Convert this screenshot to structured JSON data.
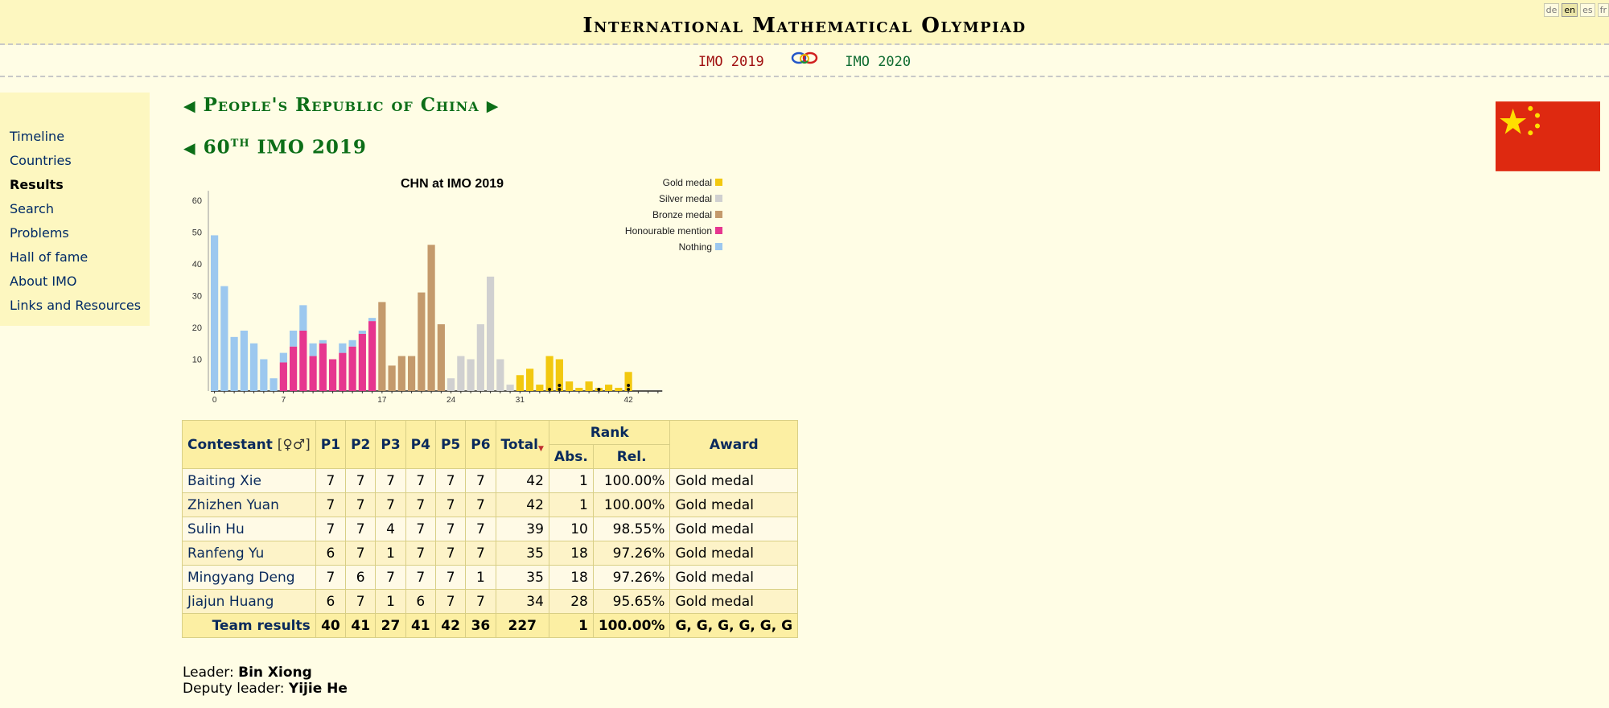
{
  "header": {
    "title": "International Mathematical Olympiad",
    "languages": [
      {
        "code": "de",
        "active": false
      },
      {
        "code": "en",
        "active": true
      },
      {
        "code": "es",
        "active": false
      },
      {
        "code": "fr",
        "active": false
      }
    ]
  },
  "nav": {
    "prev": "IMO 2019",
    "next": "IMO 2020"
  },
  "sidebar": {
    "items": [
      {
        "label": "Timeline",
        "current": false
      },
      {
        "label": "Countries",
        "current": false
      },
      {
        "label": "Results",
        "current": true
      },
      {
        "label": "Search",
        "current": false
      },
      {
        "label": "Problems",
        "current": false
      },
      {
        "label": "Hall of fame",
        "current": false
      },
      {
        "label": "About IMO",
        "current": false
      },
      {
        "label": "Links and Resources",
        "current": false
      }
    ]
  },
  "country": {
    "name": "People's Republic of China",
    "imo_ordinal": "60",
    "imo_ordinal_suffix": "TH",
    "imo_label": "IMO 2019",
    "flag": "china-flag"
  },
  "chart_data": {
    "type": "bar",
    "title": "CHN at IMO 2019",
    "xlabel": "",
    "ylabel": "",
    "xlim": [
      0,
      45
    ],
    "ylim": [
      0,
      65
    ],
    "yticks": [
      10,
      20,
      30,
      40,
      50,
      60
    ],
    "xticks": [
      0,
      7,
      17,
      24,
      31,
      42
    ],
    "legend_position": "top-right",
    "legend": [
      {
        "name": "Gold medal",
        "color": "#f2c80f"
      },
      {
        "name": "Silver medal",
        "color": "#d0d0d0"
      },
      {
        "name": "Bronze medal",
        "color": "#c49a6c"
      },
      {
        "name": "Honourable mention",
        "color": "#e6368f"
      },
      {
        "name": "Nothing",
        "color": "#9cc8ef"
      }
    ],
    "bars": [
      {
        "score": 0,
        "values": {
          "nothing": 49
        }
      },
      {
        "score": 1,
        "values": {
          "nothing": 33
        }
      },
      {
        "score": 2,
        "values": {
          "nothing": 17
        }
      },
      {
        "score": 3,
        "values": {
          "nothing": 19
        }
      },
      {
        "score": 4,
        "values": {
          "nothing": 15
        }
      },
      {
        "score": 5,
        "values": {
          "nothing": 10
        }
      },
      {
        "score": 6,
        "values": {
          "nothing": 4
        }
      },
      {
        "score": 7,
        "values": {
          "hm": 9,
          "nothing": 3
        }
      },
      {
        "score": 8,
        "values": {
          "hm": 14,
          "nothing": 5
        }
      },
      {
        "score": 9,
        "values": {
          "hm": 19,
          "nothing": 8
        }
      },
      {
        "score": 10,
        "values": {
          "hm": 11,
          "nothing": 4
        }
      },
      {
        "score": 11,
        "values": {
          "hm": 15,
          "nothing": 1
        }
      },
      {
        "score": 12,
        "values": {
          "hm": 10
        }
      },
      {
        "score": 13,
        "values": {
          "hm": 12,
          "nothing": 3
        }
      },
      {
        "score": 14,
        "values": {
          "hm": 14,
          "nothing": 2
        }
      },
      {
        "score": 15,
        "values": {
          "hm": 18,
          "nothing": 1
        }
      },
      {
        "score": 16,
        "values": {
          "hm": 22,
          "nothing": 1
        }
      },
      {
        "score": 17,
        "values": {
          "bronze": 28
        }
      },
      {
        "score": 18,
        "values": {
          "bronze": 8
        }
      },
      {
        "score": 19,
        "values": {
          "bronze": 11
        }
      },
      {
        "score": 20,
        "values": {
          "bronze": 11
        }
      },
      {
        "score": 21,
        "values": {
          "bronze": 31
        }
      },
      {
        "score": 22,
        "values": {
          "bronze": 46
        }
      },
      {
        "score": 23,
        "values": {
          "bronze": 21
        }
      },
      {
        "score": 24,
        "values": {
          "silver": 4
        }
      },
      {
        "score": 25,
        "values": {
          "silver": 11
        }
      },
      {
        "score": 26,
        "values": {
          "silver": 10
        }
      },
      {
        "score": 27,
        "values": {
          "silver": 21
        }
      },
      {
        "score": 28,
        "values": {
          "silver": 36
        }
      },
      {
        "score": 29,
        "values": {
          "silver": 10
        }
      },
      {
        "score": 30,
        "values": {
          "silver": 2
        }
      },
      {
        "score": 31,
        "values": {
          "gold": 5
        }
      },
      {
        "score": 32,
        "values": {
          "gold": 7
        }
      },
      {
        "score": 33,
        "values": {
          "gold": 2
        }
      },
      {
        "score": 34,
        "values": {
          "gold": 11
        },
        "team": 1
      },
      {
        "score": 35,
        "values": {
          "gold": 10
        },
        "team": 2
      },
      {
        "score": 36,
        "values": {
          "gold": 3
        }
      },
      {
        "score": 37,
        "values": {
          "gold": 1
        }
      },
      {
        "score": 38,
        "values": {
          "gold": 3
        }
      },
      {
        "score": 39,
        "values": {
          "gold": 1
        },
        "team": 1
      },
      {
        "score": 40,
        "values": {
          "gold": 2
        }
      },
      {
        "score": 41,
        "values": {
          "gold": 1
        }
      },
      {
        "score": 42,
        "values": {
          "gold": 6
        },
        "team": 2
      }
    ]
  },
  "table": {
    "headers": {
      "contestant": "Contestant",
      "gender_icon": "[♀♂]",
      "problems": [
        "P1",
        "P2",
        "P3",
        "P4",
        "P5",
        "P6"
      ],
      "total": "Total",
      "rank": "Rank",
      "abs": "Abs.",
      "rel": "Rel.",
      "award": "Award"
    },
    "rows": [
      {
        "name": "Baiting Xie",
        "scores": [
          "7",
          "7",
          "7",
          "7",
          "7",
          "7"
        ],
        "total": "42",
        "abs": "1",
        "rel": "100.00%",
        "award": "Gold medal"
      },
      {
        "name": "Zhizhen Yuan",
        "scores": [
          "7",
          "7",
          "7",
          "7",
          "7",
          "7"
        ],
        "total": "42",
        "abs": "1",
        "rel": "100.00%",
        "award": "Gold medal"
      },
      {
        "name": "Sulin Hu",
        "scores": [
          "7",
          "7",
          "4",
          "7",
          "7",
          "7"
        ],
        "total": "39",
        "abs": "10",
        "rel": "98.55%",
        "award": "Gold medal"
      },
      {
        "name": "Ranfeng Yu",
        "scores": [
          "6",
          "7",
          "1",
          "7",
          "7",
          "7"
        ],
        "total": "35",
        "abs": "18",
        "rel": "97.26%",
        "award": "Gold medal"
      },
      {
        "name": "Mingyang Deng",
        "scores": [
          "7",
          "6",
          "7",
          "7",
          "7",
          "1"
        ],
        "total": "35",
        "abs": "18",
        "rel": "97.26%",
        "award": "Gold medal"
      },
      {
        "name": "Jiajun Huang",
        "scores": [
          "6",
          "7",
          "1",
          "6",
          "7",
          "7"
        ],
        "total": "34",
        "abs": "28",
        "rel": "95.65%",
        "award": "Gold medal"
      }
    ],
    "team": {
      "label": "Team results",
      "scores": [
        "40",
        "41",
        "27",
        "41",
        "42",
        "36"
      ],
      "total": "227",
      "abs": "1",
      "rel": "100.00%",
      "award": "G, G, G, G, G, G"
    }
  },
  "leaders": {
    "leader_label": "Leader:",
    "leader": "Bin Xiong",
    "deputy_label": "Deputy leader:",
    "deputy": "Yijie He"
  }
}
